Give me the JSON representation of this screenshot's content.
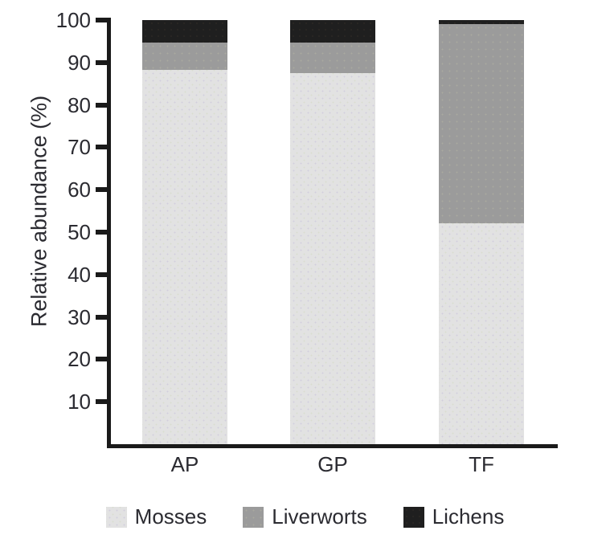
{
  "figure": {
    "background": "#ffffff",
    "axis_color": "#1a1a1a",
    "text_color": "#2b2b31"
  },
  "chart_data": {
    "type": "bar",
    "stacked": true,
    "title": "",
    "xlabel": "",
    "ylabel": "Relative abundance (%)",
    "ylim": [
      0,
      100
    ],
    "yticks": [
      100,
      90,
      80,
      70,
      60,
      50,
      40,
      30,
      20,
      10
    ],
    "categories": [
      "AP",
      "GP",
      "TF"
    ],
    "series": [
      {
        "name": "Mosses",
        "color": "#e2e2e2",
        "values": [
          88.3,
          87.5,
          52
        ]
      },
      {
        "name": "Liverworts",
        "color": "#9b9b9b",
        "values": [
          6.4,
          7.2,
          47
        ]
      },
      {
        "name": "Lichens",
        "color": "#1f1f1f",
        "values": [
          5.3,
          5.3,
          1
        ]
      }
    ],
    "grid": false,
    "legend": {
      "position": "bottom",
      "entries": [
        "Mosses",
        "Liverworts",
        "Lichens"
      ]
    }
  }
}
